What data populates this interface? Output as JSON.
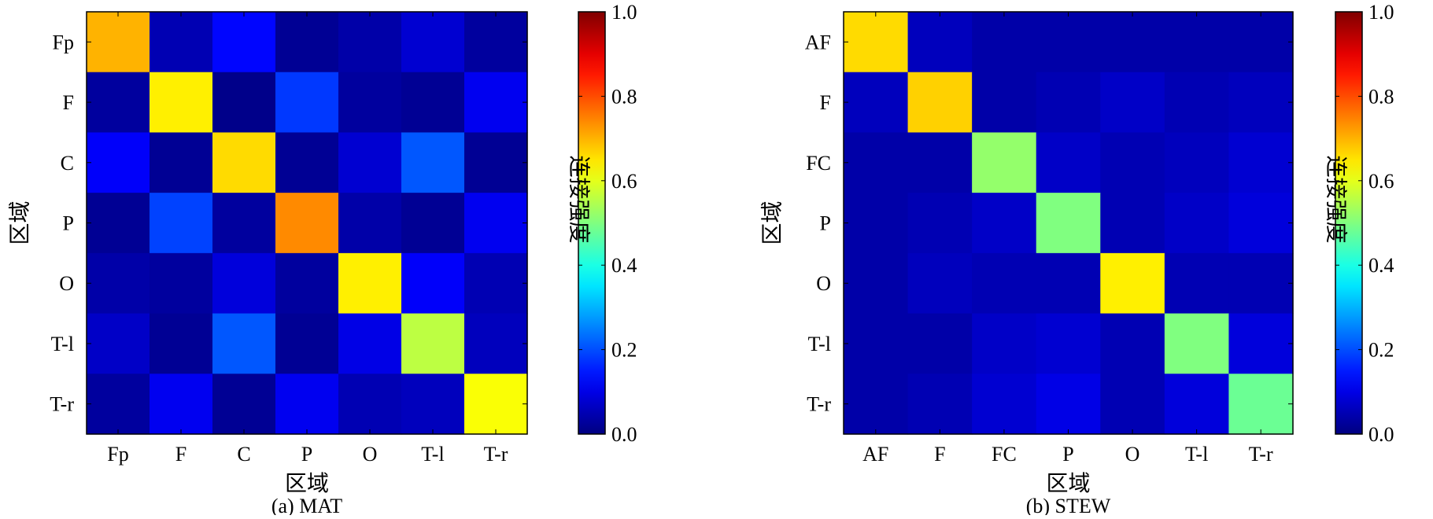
{
  "colorscale": "jet",
  "chart_data": [
    {
      "type": "heatmap",
      "caption": "(a) MAT",
      "xlabel": "区域",
      "ylabel": "区域",
      "colorbar_label": "连接强度",
      "colorbar_range": [
        0,
        1
      ],
      "colorbar_ticks": [
        "0.0",
        "0.2",
        "0.4",
        "0.6",
        "0.8",
        "1.0"
      ],
      "x_categories": [
        "Fp",
        "F",
        "C",
        "P",
        "O",
        "T-l",
        "T-r"
      ],
      "y_categories": [
        "Fp",
        "F",
        "C",
        "P",
        "O",
        "T-l",
        "T-r"
      ],
      "values": [
        [
          0.7,
          0.05,
          0.13,
          0.02,
          0.04,
          0.08,
          0.03
        ],
        [
          0.03,
          0.64,
          0.01,
          0.18,
          0.03,
          0.02,
          0.11
        ],
        [
          0.12,
          0.02,
          0.66,
          0.02,
          0.08,
          0.21,
          0.02
        ],
        [
          0.02,
          0.19,
          0.03,
          0.74,
          0.04,
          0.02,
          0.11
        ],
        [
          0.04,
          0.03,
          0.09,
          0.03,
          0.64,
          0.12,
          0.05
        ],
        [
          0.07,
          0.02,
          0.21,
          0.02,
          0.1,
          0.56,
          0.06
        ],
        [
          0.03,
          0.11,
          0.02,
          0.11,
          0.05,
          0.06,
          0.62
        ]
      ]
    },
    {
      "type": "heatmap",
      "caption": "(b) STEW",
      "xlabel": "区域",
      "ylabel": "区域",
      "colorbar_label": "连接强度",
      "colorbar_range": [
        0,
        1
      ],
      "colorbar_ticks": [
        "0.0",
        "0.2",
        "0.4",
        "0.6",
        "0.8",
        "1.0"
      ],
      "x_categories": [
        "AF",
        "F",
        "FC",
        "P",
        "O",
        "T-l",
        "T-r"
      ],
      "y_categories": [
        "AF",
        "F",
        "FC",
        "P",
        "O",
        "T-l",
        "T-r"
      ],
      "values": [
        [
          0.66,
          0.06,
          0.04,
          0.04,
          0.04,
          0.04,
          0.04
        ],
        [
          0.06,
          0.67,
          0.04,
          0.05,
          0.07,
          0.05,
          0.06
        ],
        [
          0.04,
          0.04,
          0.52,
          0.07,
          0.05,
          0.06,
          0.08
        ],
        [
          0.04,
          0.05,
          0.07,
          0.5,
          0.05,
          0.07,
          0.09
        ],
        [
          0.04,
          0.06,
          0.05,
          0.05,
          0.64,
          0.05,
          0.05
        ],
        [
          0.04,
          0.04,
          0.07,
          0.08,
          0.05,
          0.5,
          0.09
        ],
        [
          0.04,
          0.05,
          0.08,
          0.1,
          0.05,
          0.09,
          0.48
        ]
      ]
    }
  ]
}
